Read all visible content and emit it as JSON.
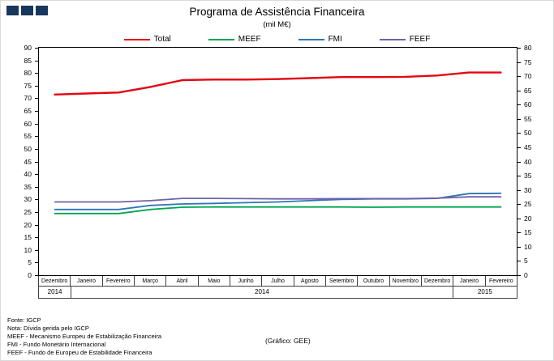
{
  "header": {
    "title": "Programa de Assistência Financeira",
    "subtitle": "(mil M€)"
  },
  "logo": {
    "color": "#17375D"
  },
  "chart_data": {
    "type": "line",
    "title": "Programa de Assistência Financeira",
    "subtitle": "(mil M€)",
    "unit": "mil M€",
    "grid": false,
    "legend_position": "top",
    "categories": [
      "Dezembro",
      "Janeiro",
      "Fevereiro",
      "Março",
      "Abril",
      "Maio",
      "Junho",
      "Julho",
      "Agosto",
      "Setembro",
      "Outubro",
      "Novembro",
      "Dezembro",
      "Janeiro",
      "Fevereiro"
    ],
    "year_groups": [
      {
        "label": "2014",
        "span": 1
      },
      {
        "label": "2014",
        "span": 12
      },
      {
        "label": "2015",
        "span": 2
      }
    ],
    "left_axis": {
      "min": 0,
      "max": 90,
      "step": 5
    },
    "right_axis": {
      "min": 0,
      "max": 80,
      "step": 5
    },
    "series": [
      {
        "name": "Total",
        "color": "#E30613",
        "values": [
          71.5,
          71.9,
          72.3,
          74.5,
          77.2,
          77.4,
          77.4,
          77.6,
          78.0,
          78.4,
          78.4,
          78.5,
          79.0,
          80.2,
          80.2
        ]
      },
      {
        "name": "MEEF",
        "color": "#00A551",
        "values": [
          24.4,
          24.4,
          24.4,
          26.0,
          26.9,
          27.0,
          27.0,
          27.0,
          27.0,
          27.0,
          26.9,
          27.0,
          27.0,
          27.0,
          27.0
        ]
      },
      {
        "name": "FMI",
        "color": "#2E75B6",
        "values": [
          26.0,
          26.0,
          26.0,
          27.6,
          28.2,
          28.4,
          28.7,
          29.0,
          29.5,
          30.0,
          30.2,
          30.2,
          30.4,
          32.3,
          32.4
        ]
      },
      {
        "name": "FEEF",
        "color": "#7161A9",
        "values": [
          29.0,
          29.0,
          29.0,
          29.5,
          30.4,
          30.4,
          30.3,
          30.2,
          30.2,
          30.3,
          30.3,
          30.3,
          30.5,
          31.0,
          31.0
        ]
      }
    ]
  },
  "notes": {
    "lines": [
      "Fonte: IGCP",
      "Nota: Dívida gerida pelo IGCP",
      "MEEF - Mecanismo Europeu de Estabilização Financeira",
      "FMI - Fundo Monetário Internacional",
      "FEEF - Fundo de Europeu de Estabilidade Financeira"
    ],
    "credit": "(Gráfico: GEE)"
  }
}
